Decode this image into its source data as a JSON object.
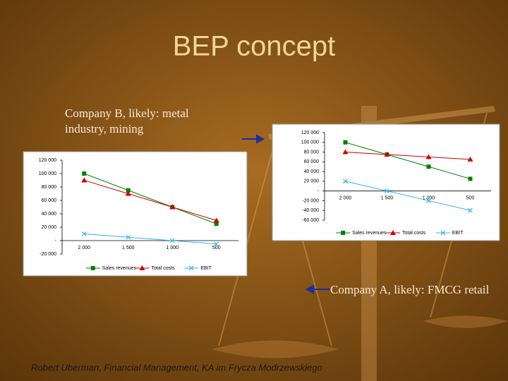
{
  "slide": {
    "title": "BEP concept",
    "note_b": "Company B, likely: metal industry, mining",
    "note_a": "Company A, likely: FMCG retail",
    "footer": "Robert Uberman, Financial Management, KA im Frycza Modrzewskiego"
  },
  "chart_data": [
    {
      "type": "line",
      "categories": [
        "2 000",
        "1 500",
        "1 000",
        "500"
      ],
      "series": [
        {
          "name": "Sales revenues",
          "color": "#008000",
          "marker": "square",
          "values": [
            100000,
            75000,
            50000,
            25000
          ]
        },
        {
          "name": "Total costs",
          "color": "#cc0000",
          "marker": "triangle",
          "values": [
            90000,
            70000,
            50000,
            30000
          ]
        },
        {
          "name": "EBIT",
          "color": "#33b5e5",
          "marker": "x",
          "values": [
            10000,
            5000,
            0,
            -5000
          ]
        }
      ],
      "ylim": [
        -20000,
        120000
      ],
      "yticks": [
        {
          "value": -20000,
          "label": "-20 000"
        },
        {
          "value": 0,
          "label": "-"
        },
        {
          "value": 20000,
          "label": "20 000"
        },
        {
          "value": 40000,
          "label": "40 000"
        },
        {
          "value": 60000,
          "label": "60 000"
        },
        {
          "value": 80000,
          "label": "80 000"
        },
        {
          "value": 100000,
          "label": "100 000"
        },
        {
          "value": 120000,
          "label": "120 000"
        }
      ],
      "grid": false,
      "legend": "bottom"
    },
    {
      "type": "line",
      "categories": [
        "2 000",
        "1 500",
        "1 000",
        "500"
      ],
      "series": [
        {
          "name": "Sales revenues",
          "color": "#008000",
          "marker": "square",
          "values": [
            100000,
            75000,
            50000,
            25000
          ]
        },
        {
          "name": "Total costs",
          "color": "#cc0000",
          "marker": "triangle",
          "values": [
            80000,
            75000,
            70000,
            65000
          ]
        },
        {
          "name": "EBIT",
          "color": "#33b5e5",
          "marker": "x",
          "values": [
            20000,
            0,
            -20000,
            -40000
          ]
        }
      ],
      "ylim": [
        -60000,
        120000
      ],
      "yticks": [
        {
          "value": -60000,
          "label": "-60 000"
        },
        {
          "value": -40000,
          "label": "-40 000"
        },
        {
          "value": -20000,
          "label": "-20 000"
        },
        {
          "value": 0,
          "label": "-"
        },
        {
          "value": 20000,
          "label": "20 000"
        },
        {
          "value": 40000,
          "label": "40 000"
        },
        {
          "value": 60000,
          "label": "60 000"
        },
        {
          "value": 80000,
          "label": "80 000"
        },
        {
          "value": 100000,
          "label": "100 000"
        },
        {
          "value": 120000,
          "label": "120 000"
        }
      ],
      "grid": false,
      "legend": "bottom"
    }
  ]
}
